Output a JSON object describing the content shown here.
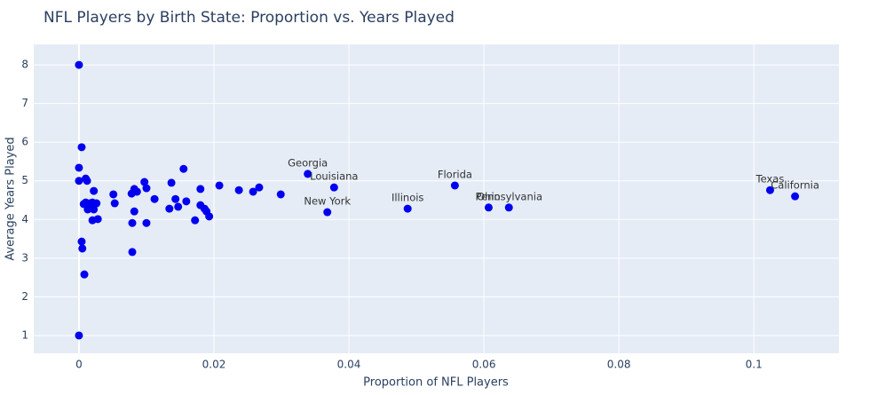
{
  "chart_data": {
    "type": "scatter",
    "title": "NFL Players by Birth State: Proportion vs. Years Played",
    "x_label": "Proportion of NFL Players",
    "y_label": "Average Years Played",
    "color": "#0000ee",
    "grid": true,
    "xlim": [
      -0.0067,
      0.1126
    ],
    "ylim": [
      0.54,
      8.53
    ],
    "xticks": [
      0,
      0.02,
      0.04,
      0.06,
      0.08,
      0.1
    ],
    "yticks": [
      1,
      2,
      3,
      4,
      5,
      6,
      7,
      8
    ],
    "x": [
      0,
      0,
      0,
      0,
      0.0004,
      0.0004,
      0.0005,
      0.0008,
      0.0007,
      0.001,
      0.001,
      0.0012,
      0.0013,
      0.0016,
      0.002,
      0.002,
      0.0022,
      0.0022,
      0.0026,
      0.0028,
      0.0051,
      0.0053,
      0.0078,
      0.0079,
      0.0079,
      0.0082,
      0.0082,
      0.0086,
      0.0097,
      0.01,
      0.01,
      0.0112,
      0.0134,
      0.0137,
      0.0143,
      0.0147,
      0.0155,
      0.0159,
      0.0172,
      0.018,
      0.018,
      0.0186,
      0.0189,
      0.0193,
      0.0208,
      0.0237,
      0.0258,
      0.0267,
      0.0299,
      0.0339,
      0.0378,
      0.0368,
      0.0487,
      0.0557,
      0.0607,
      0.0637,
      0.1024,
      0.1061
    ],
    "values": [
      8,
      1,
      5.34,
      5.0,
      5.87,
      3.43,
      3.25,
      2.58,
      4.4,
      4.44,
      5.06,
      5.0,
      4.26,
      4.42,
      4.44,
      3.98,
      4.74,
      4.26,
      4.42,
      4.01,
      4.65,
      4.42,
      4.67,
      3.91,
      3.16,
      4.79,
      4.21,
      4.72,
      4.97,
      4.81,
      3.91,
      4.53,
      4.28,
      4.95,
      4.53,
      4.33,
      5.31,
      4.47,
      3.98,
      4.79,
      4.37,
      4.28,
      4.21,
      4.08,
      4.88,
      4.76,
      4.72,
      4.83,
      4.65,
      5.18,
      4.83,
      4.19,
      4.28,
      4.88,
      4.31,
      4.31,
      4.76,
      4.6
    ],
    "text": [
      null,
      null,
      null,
      null,
      null,
      null,
      null,
      null,
      null,
      null,
      null,
      null,
      null,
      null,
      null,
      null,
      null,
      null,
      null,
      null,
      null,
      null,
      null,
      null,
      null,
      null,
      null,
      null,
      null,
      null,
      null,
      null,
      null,
      null,
      null,
      null,
      null,
      null,
      null,
      null,
      null,
      null,
      null,
      null,
      null,
      null,
      null,
      null,
      null,
      "Georgia",
      "Louisiana",
      "New York",
      "Illinois",
      "Florida",
      "Ohio",
      "Pennsylvania",
      "Texas",
      "California"
    ]
  }
}
